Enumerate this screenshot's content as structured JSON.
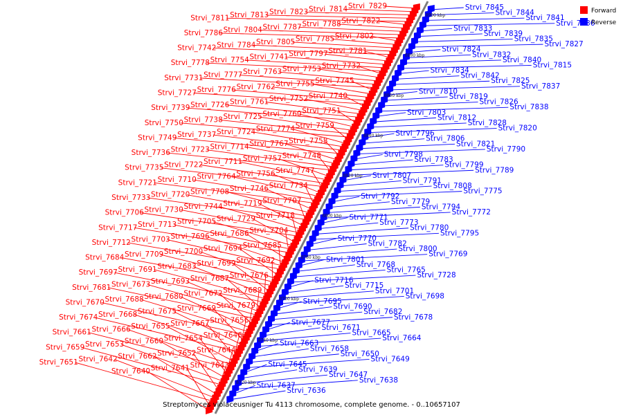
{
  "caption": "Streptomyces violaceusniger Tu 4113 chromosome, complete genome. - 0..10657107",
  "legend": {
    "items": [
      {
        "label": "Forward",
        "color": "#ff0000"
      },
      {
        "label": "Reverse",
        "color": "#0000ff"
      }
    ]
  },
  "colors": {
    "forward": "#ff0000",
    "reverse": "#0000ff",
    "backbone": "#808080"
  },
  "ticks": [
    "8720 kbp",
    "8740 kbp",
    "8760 kbp",
    "8780 kbp",
    "8800 kbp",
    "8820 kbp",
    "8840 kbp",
    "8860 kbp",
    "8880 kbp",
    "8900 kbp"
  ],
  "forward_genes": [
    "Strvi_7829",
    "Strvi_7814",
    "Strvi_7823",
    "Strvi_7813",
    "Strvi_7811",
    "Strvi_7822",
    "Strvi_7788",
    "Strvi_7787",
    "Strvi_7804",
    "Strvi_7786",
    "Strvi_7802",
    "Strvi_7785",
    "Strvi_7805",
    "Strvi_7784",
    "Strvi_7742",
    "Strvi_7781",
    "Strvi_7797",
    "Strvi_7741",
    "Strvi_7754",
    "Strvi_7778",
    "Strvi_7732",
    "Strvi_7753",
    "Strvi_7763",
    "Strvi_7777",
    "Strvi_7731",
    "Strvi_7745",
    "Strvi_7755",
    "Strvi_7762",
    "Strvi_7776",
    "Strvi_7727",
    "Strvi_7740",
    "Strvi_7752",
    "Strvi_7761",
    "Strvi_7726",
    "Strvi_7739",
    "Strvi_7751",
    "Strvi_7760",
    "Strvi_7725",
    "Strvi_7738",
    "Strvi_7750",
    "Strvi_7759",
    "Strvi_7774",
    "Strvi_7724",
    "Strvi_7737",
    "Strvi_7749",
    "Strvi_7758",
    "Strvi_7767",
    "Strvi_7714",
    "Strvi_7723",
    "Strvi_7736",
    "Strvi_7748",
    "Strvi_7757",
    "Strvi_7711",
    "Strvi_7722",
    "Strvi_7735",
    "Strvi_7747",
    "Strvi_7756",
    "Strvi_7764",
    "Strvi_7710",
    "Strvi_7721",
    "Strvi_7734",
    "Strvi_7746",
    "Strvi_7708",
    "Strvi_7720",
    "Strvi_7733",
    "Strvi_7707",
    "Strvi_7719",
    "Strvi_7744",
    "Strvi_7730",
    "Strvi_7706",
    "Strvi_7718",
    "Strvi_7729",
    "Strvi_7705",
    "Strvi_7713",
    "Strvi_7717",
    "Strvi_7704",
    "Strvi_7686",
    "Strvi_7696",
    "Strvi_7703",
    "Strvi_7712",
    "Strvi_7685",
    "Strvi_7694",
    "Strvi_7700",
    "Strvi_7709",
    "Strvi_7684",
    "Strvi_7692",
    "Strvi_7699",
    "Strvi_7683",
    "Strvi_7691",
    "Strvi_7697",
    "Strvi_7676",
    "Strvi_7687",
    "Strvi_7693",
    "Strvi_7673",
    "Strvi_7681",
    "Strvi_7689",
    "Strvi_7672",
    "Strvi_7680",
    "Strvi_7688",
    "Strvi_7670",
    "Strvi_7679",
    "Strvi_7669",
    "Strvi_7675",
    "Strvi_7668",
    "Strvi_7674",
    "Strvi_7656",
    "Strvi_7667",
    "Strvi_7655",
    "Strvi_7666",
    "Strvi_7661",
    "Strvi_7646",
    "Strvi_7654",
    "Strvi_7660",
    "Strvi_7653",
    "Strvi_7659",
    "Strvi_7644",
    "Strvi_7652",
    "Strvi_7662",
    "Strvi_7642",
    "Strvi_7651",
    "Strvi_7643",
    "Strvi_7641",
    "Strvi_7640"
  ],
  "reverse_genes": [
    "Strvi_7845",
    "Strvi_7844",
    "Strvi_7841",
    "Strvi_7836",
    "Strvi_7833",
    "Strvi_7839",
    "Strvi_7835",
    "Strvi_7827",
    "Strvi_7824",
    "Strvi_7832",
    "Strvi_7840",
    "Strvi_7815",
    "Strvi_7834",
    "Strvi_7842",
    "Strvi_7825",
    "Strvi_7837",
    "Strvi_7810",
    "Strvi_7819",
    "Strvi_7826",
    "Strvi_7838",
    "Strvi_7803",
    "Strvi_7812",
    "Strvi_7828",
    "Strvi_7820",
    "Strvi_7796",
    "Strvi_7806",
    "Strvi_7821",
    "Strvi_7790",
    "Strvi_7798",
    "Strvi_7783",
    "Strvi_7799",
    "Strvi_7789",
    "Strvi_7807",
    "Strvi_7791",
    "Strvi_7808",
    "Strvi_7775",
    "Strvi_7792",
    "Strvi_7779",
    "Strvi_7794",
    "Strvi_7772",
    "Strvi_7771",
    "Strvi_7773",
    "Strvi_7780",
    "Strvi_7795",
    "Strvi_7770",
    "Strvi_7782",
    "Strvi_7800",
    "Strvi_7769",
    "Strvi_7801",
    "Strvi_7768",
    "Strvi_7765",
    "Strvi_7728",
    "Strvi_7716",
    "Strvi_7715",
    "Strvi_7701",
    "Strvi_7698",
    "Strvi_7695",
    "Strvi_7690",
    "Strvi_7682",
    "Strvi_7678",
    "Strvi_7677",
    "Strvi_7671",
    "Strvi_7665",
    "Strvi_7664",
    "Strvi_7663",
    "Strvi_7658",
    "Strvi_7650",
    "Strvi_7649",
    "Strvi_7645",
    "Strvi_7639",
    "Strvi_7647",
    "Strvi_7638",
    "Strvi_7637",
    "Strvi_7636"
  ]
}
